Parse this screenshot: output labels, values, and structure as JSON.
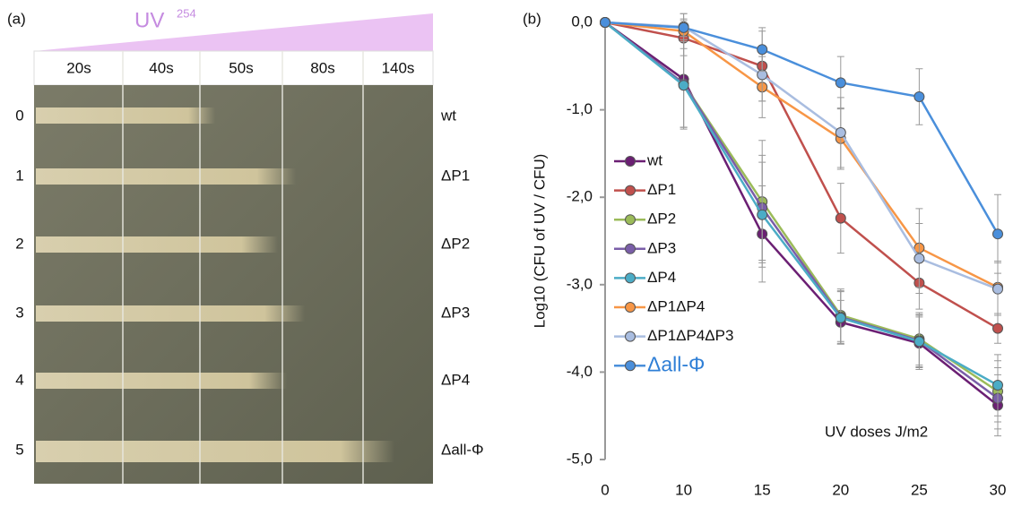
{
  "panel_a": {
    "label": "(a)",
    "uv": "UV",
    "wavelength": "254",
    "columns": [
      "20s",
      "40s",
      "50s",
      "80s",
      "140s"
    ],
    "rows": [
      "0",
      "1",
      "2",
      "3",
      "4",
      "5"
    ],
    "strains": [
      "wt",
      "ΔP1",
      "ΔP2",
      "ΔP3",
      "ΔP4",
      "Δall-Φ"
    ]
  },
  "chart_data": {
    "type": "line",
    "panel_label": "(b)",
    "y_label": "Log10 (CFU of UV / CFU)",
    "annotation": "UV doses J/m2",
    "categories": [
      "0",
      "10",
      "15",
      "20",
      "25",
      "30"
    ],
    "ylim": [
      -5,
      0
    ],
    "yticks": [
      {
        "value": 0,
        "label": "0,0"
      },
      {
        "value": -1,
        "label": "-1,0"
      },
      {
        "value": -2,
        "label": "-2,0"
      },
      {
        "value": -3,
        "label": "-3,0"
      },
      {
        "value": -4,
        "label": "-4,0"
      },
      {
        "value": -5,
        "label": "-5,0"
      }
    ],
    "series": [
      {
        "name": "wt",
        "color": "#6b1f73",
        "values": [
          0,
          -0.65,
          -2.42,
          -3.43,
          -3.67,
          -4.38
        ],
        "errors": [
          0,
          0.55,
          0.55,
          0.25,
          0.3,
          0.35
        ]
      },
      {
        "name": "ΔP1",
        "color": "#c0504d",
        "values": [
          0,
          -0.18,
          -0.5,
          -2.24,
          -2.98,
          -3.5
        ],
        "errors": [
          0,
          0.2,
          0.4,
          0.4,
          0.3,
          0.17
        ]
      },
      {
        "name": "ΔP2",
        "color": "#9bbb59",
        "values": [
          0,
          -0.7,
          -2.05,
          -3.35,
          -3.62,
          -4.22
        ],
        "errors": [
          0,
          0.5,
          0.7,
          0.3,
          0.3,
          0.35
        ]
      },
      {
        "name": "ΔP3",
        "color": "#7a5ea8",
        "values": [
          0,
          -0.7,
          -2.12,
          -3.37,
          -3.64,
          -4.3
        ],
        "errors": [
          0,
          0.5,
          0.6,
          0.3,
          0.3,
          0.35
        ]
      },
      {
        "name": "ΔP4",
        "color": "#4bacc6",
        "values": [
          0,
          -0.72,
          -2.2,
          -3.38,
          -3.65,
          -4.15
        ],
        "errors": [
          0,
          0.5,
          0.6,
          0.3,
          0.3,
          0.35
        ]
      },
      {
        "name": "ΔP1ΔP4",
        "color": "#f79646",
        "values": [
          0,
          -0.1,
          -0.74,
          -1.33,
          -2.58,
          -3.03
        ],
        "errors": [
          0,
          0.2,
          0.35,
          0.35,
          0.45,
          0.3
        ]
      },
      {
        "name": "ΔP1ΔP4ΔP3",
        "color": "#a9bde0",
        "values": [
          0,
          -0.05,
          -0.6,
          -1.26,
          -2.7,
          -3.05
        ],
        "errors": [
          0,
          0.15,
          0.3,
          0.4,
          0.4,
          0.3
        ]
      },
      {
        "name": "Δall-Φ",
        "color": "#4a8fdb",
        "values": [
          0,
          -0.06,
          -0.31,
          -0.69,
          -0.85,
          -2.42
        ],
        "errors": [
          0,
          0.1,
          0.25,
          0.3,
          0.32,
          0.45
        ]
      }
    ]
  }
}
